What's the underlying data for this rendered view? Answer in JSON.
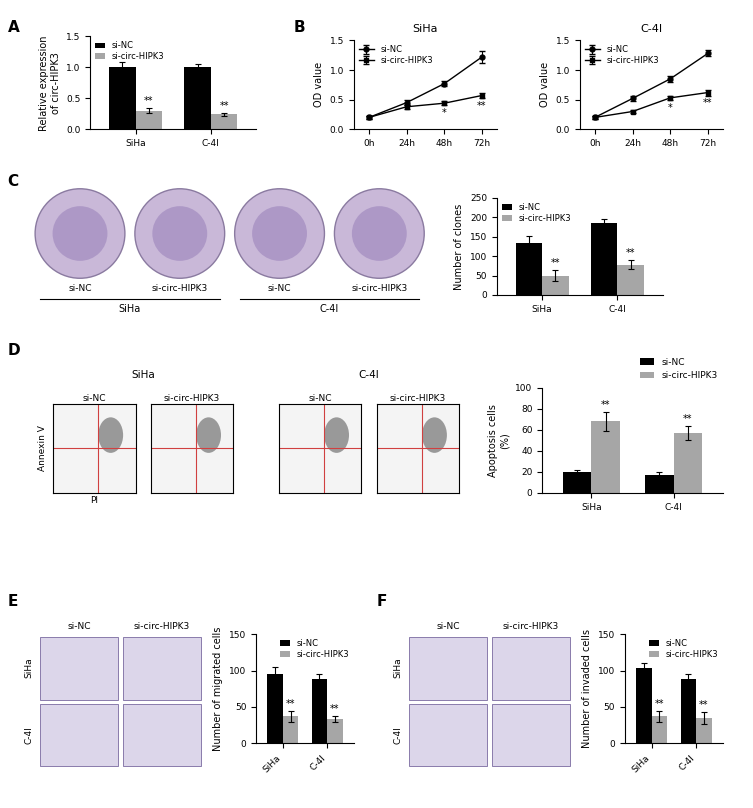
{
  "panel_labels": [
    "A",
    "B",
    "C",
    "D",
    "E",
    "F"
  ],
  "chart_data": [
    {
      "type": "bar",
      "categories": [
        "SiHa",
        "C-4I"
      ],
      "y_label": "Relative expression\nof circ-HIPK3",
      "ylim": [
        0,
        1.5
      ],
      "yticks": [
        {
          "value": 0,
          "label": "0.0"
        },
        {
          "value": 0.5,
          "label": "0.5"
        },
        {
          "value": 1.0,
          "label": "1.0"
        },
        {
          "value": 1.5,
          "label": "1.5"
        }
      ],
      "legend": "upper left",
      "series": [
        {
          "name": "si-NC",
          "color": "#000000",
          "values": [
            1.0,
            1.0
          ],
          "errors": [
            0.08,
            0.05
          ]
        },
        {
          "name": "si-circ-HIPK3",
          "color": "#a6a6a6",
          "values": [
            0.3,
            0.24
          ],
          "errors": [
            0.04,
            0.03
          ],
          "significance": [
            "**",
            "**"
          ]
        }
      ]
    },
    {
      "type": "line",
      "title": "SiHa",
      "categories": [
        "0h",
        "24h",
        "48h",
        "72h"
      ],
      "y_label": "OD value",
      "ylim": [
        0,
        1.5
      ],
      "yticks": [
        {
          "value": 0,
          "label": "0.0"
        },
        {
          "value": 0.5,
          "label": "0.5"
        },
        {
          "value": 1.0,
          "label": "1.0"
        },
        {
          "value": 1.5,
          "label": "1.5"
        }
      ],
      "legend": "upper left",
      "series": [
        {
          "name": "si-NC",
          "color": "#000000",
          "marker": "circle",
          "values": [
            0.2,
            0.45,
            0.77,
            1.22
          ],
          "errors": [
            0.03,
            0.04,
            0.04,
            0.1
          ]
        },
        {
          "name": "si-circ-HIPK3",
          "color": "#000000",
          "marker": "square",
          "values": [
            0.2,
            0.38,
            0.44,
            0.57
          ],
          "errors": [
            0.02,
            0.03,
            0.03,
            0.05
          ],
          "significance": [
            null,
            null,
            "*",
            "**"
          ]
        }
      ]
    },
    {
      "type": "line",
      "title": "C-4I",
      "categories": [
        "0h",
        "24h",
        "48h",
        "72h"
      ],
      "y_label": "OD value",
      "ylim": [
        0,
        1.5
      ],
      "yticks": [
        {
          "value": 0,
          "label": "0.0"
        },
        {
          "value": 0.5,
          "label": "0.5"
        },
        {
          "value": 1.0,
          "label": "1.0"
        },
        {
          "value": 1.5,
          "label": "1.5"
        }
      ],
      "legend": "upper left",
      "series": [
        {
          "name": "si-NC",
          "color": "#000000",
          "marker": "circle",
          "values": [
            0.2,
            0.52,
            0.85,
            1.28
          ],
          "errors": [
            0.03,
            0.04,
            0.05,
            0.05
          ]
        },
        {
          "name": "si-circ-HIPK3",
          "color": "#000000",
          "marker": "square",
          "values": [
            0.2,
            0.3,
            0.53,
            0.62
          ],
          "errors": [
            0.02,
            0.02,
            0.04,
            0.05
          ],
          "significance": [
            null,
            null,
            "*",
            "**"
          ]
        }
      ]
    },
    {
      "type": "bar",
      "categories": [
        "SiHa",
        "C-4I"
      ],
      "y_label": "Number of clones",
      "ylim": [
        0,
        250
      ],
      "yticks": [
        0,
        50,
        100,
        150,
        200,
        250
      ],
      "legend": "upper left",
      "series": [
        {
          "name": "si-NC",
          "color": "#000000",
          "values": [
            135,
            185
          ],
          "errors": [
            18,
            10
          ]
        },
        {
          "name": "si-circ-HIPK3",
          "color": "#a6a6a6",
          "values": [
            50,
            78
          ],
          "errors": [
            15,
            12
          ],
          "significance": [
            "**",
            "**"
          ]
        }
      ]
    },
    {
      "type": "bar",
      "categories": [
        "SiHa",
        "C-4I"
      ],
      "y_label": "Apoptosis cells\n(%)",
      "ylim": [
        0,
        100
      ],
      "yticks": [
        0,
        20,
        40,
        60,
        80,
        100
      ],
      "legend": "upper right",
      "series": [
        {
          "name": "si-NC",
          "color": "#000000",
          "values": [
            20,
            17
          ],
          "errors": [
            2,
            3
          ]
        },
        {
          "name": "si-circ-HIPK3",
          "color": "#a6a6a6",
          "values": [
            68,
            57
          ],
          "errors": [
            9,
            7
          ],
          "significance": [
            "**",
            "**"
          ]
        }
      ]
    },
    {
      "type": "bar",
      "categories": [
        "SiHa",
        "C-4I"
      ],
      "y_label": "Number of migrated cells",
      "ylim": [
        0,
        150
      ],
      "yticks": [
        0,
        50,
        100,
        150
      ],
      "legend": "upper right",
      "series": [
        {
          "name": "si-NC",
          "color": "#000000",
          "values": [
            95,
            88
          ],
          "errors": [
            10,
            7
          ]
        },
        {
          "name": "si-circ-HIPK3",
          "color": "#a6a6a6",
          "values": [
            37,
            33
          ],
          "errors": [
            7,
            4
          ],
          "significance": [
            "**",
            "**"
          ]
        }
      ]
    },
    {
      "type": "bar",
      "categories": [
        "SiHa",
        "C-4I"
      ],
      "y_label": "Number of invaded cells",
      "ylim": [
        0,
        150
      ],
      "yticks": [
        0,
        50,
        100,
        150
      ],
      "legend": "upper right",
      "series": [
        {
          "name": "si-NC",
          "color": "#000000",
          "values": [
            104,
            88
          ],
          "errors": [
            7,
            8
          ]
        },
        {
          "name": "si-circ-HIPK3",
          "color": "#a6a6a6",
          "values": [
            37,
            35
          ],
          "errors": [
            7,
            8
          ],
          "significance": [
            "**",
            "**"
          ]
        }
      ]
    }
  ],
  "images": {
    "C": {
      "captions": [
        "si-NC",
        "si-circ-HIPK3",
        "si-NC",
        "si-circ-HIPK3"
      ],
      "groups": [
        "SiHa",
        "C-4I"
      ]
    },
    "D": {
      "groups": [
        "SiHa",
        "C-4I"
      ],
      "captions": [
        "si-NC",
        "si-circ-HIPK3",
        "si-NC",
        "si-circ-HIPK3"
      ],
      "y_label": "Annexin V",
      "x_label": "PI"
    },
    "E": {
      "columns": [
        "si-NC",
        "si-circ-HIPK3"
      ],
      "rows": [
        "SiHa",
        "C-4I"
      ]
    },
    "F": {
      "columns": [
        "si-NC",
        "si-circ-HIPK3"
      ],
      "rows": [
        "SiHa",
        "C-4I"
      ]
    }
  }
}
